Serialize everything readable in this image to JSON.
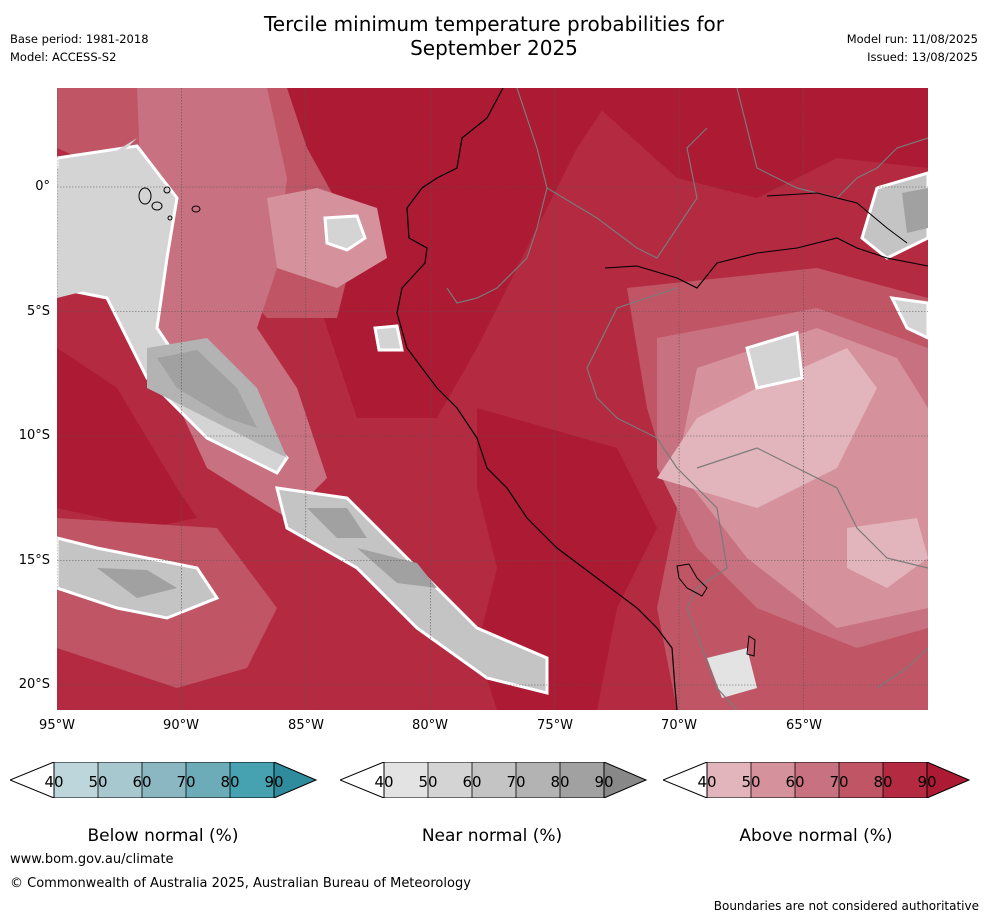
{
  "header": {
    "title_line1": "Tercile minimum temperature probabilities for",
    "title_line2": "September 2025",
    "base_period": "Base period: 1981-2018",
    "model": "Model: ACCESS-S2",
    "model_run": "Model run: 11/08/2025",
    "issued": "Issued: 13/08/2025"
  },
  "axes": {
    "lat_labels": [
      "0°",
      "5°S",
      "10°S",
      "15°S",
      "20°S"
    ],
    "lon_labels": [
      "95°W",
      "90°W",
      "85°W",
      "80°W",
      "75°W",
      "70°W",
      "65°W"
    ]
  },
  "colorbars": [
    {
      "title": "Below normal (%)",
      "ticks": [
        "40",
        "50",
        "60",
        "70",
        "80",
        "90"
      ],
      "colors": [
        "#bcd6dc",
        "#a7c8cf",
        "#8bb7c2",
        "#6bacb8",
        "#46a1b0",
        "#2f8c9d"
      ]
    },
    {
      "title": "Near normal (%)",
      "ticks": [
        "40",
        "50",
        "60",
        "70",
        "80",
        "90"
      ],
      "colors": [
        "#e3e3e3",
        "#d4d4d4",
        "#c4c4c4",
        "#b3b3b3",
        "#a1a1a1",
        "#888888"
      ]
    },
    {
      "title": "Above normal (%)",
      "ticks": [
        "40",
        "50",
        "60",
        "70",
        "80",
        "90"
      ],
      "colors": [
        "#e2b4bb",
        "#d5929c",
        "#c87180",
        "#c05665",
        "#b42a40",
        "#ad1a33"
      ]
    }
  ],
  "footer": {
    "website": "www.bom.gov.au/climate",
    "copyright": "© Commonwealth of Australia 2025, Australian Bureau of Meteorology",
    "disclaimer": "Boundaries are not considered authoritative"
  }
}
